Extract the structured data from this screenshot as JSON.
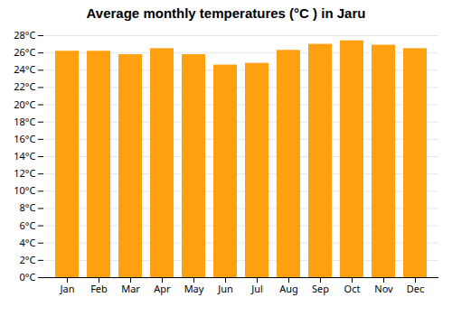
{
  "chart_data": {
    "type": "bar",
    "title": "Average monthly temperatures (°C ) in Jaru",
    "categories": [
      "Jan",
      "Feb",
      "Mar",
      "Apr",
      "May",
      "Jun",
      "Jul",
      "Aug",
      "Sep",
      "Oct",
      "Nov",
      "Dec"
    ],
    "values": [
      26.2,
      26.2,
      25.8,
      26.5,
      25.8,
      24.6,
      24.8,
      26.3,
      27.0,
      27.4,
      26.9,
      26.5
    ],
    "color": "#FFA010",
    "ylim": [
      0,
      28
    ],
    "yticks": [
      {
        "value": 0,
        "label": "0°C"
      },
      {
        "value": 2,
        "label": "2°C"
      },
      {
        "value": 4,
        "label": "4°C"
      },
      {
        "value": 6,
        "label": "6°C"
      },
      {
        "value": 8,
        "label": "8°C"
      },
      {
        "value": 10,
        "label": "10°C"
      },
      {
        "value": 12,
        "label": "12°C"
      },
      {
        "value": 14,
        "label": "14°C"
      },
      {
        "value": 16,
        "label": "16°C"
      },
      {
        "value": 18,
        "label": "18°C"
      },
      {
        "value": 20,
        "label": "20°C"
      },
      {
        "value": 22,
        "label": "22°C"
      },
      {
        "value": 24,
        "label": "24°C"
      },
      {
        "value": 26,
        "label": "26°C"
      },
      {
        "value": 28,
        "label": "28°C"
      }
    ],
    "grid": true
  }
}
